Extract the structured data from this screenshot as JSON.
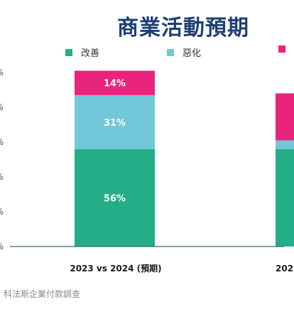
{
  "colors": {
    "improve": "#23ae87",
    "worsen": "#72c7d9",
    "third": "#e8247c",
    "title": "#1d3f73",
    "axis": "#39607d"
  },
  "chart_data": {
    "type": "bar",
    "stacked": true,
    "title": "商業活動預期",
    "categories": [
      "2023 vs 2024 (預期)",
      "202"
    ],
    "ylim": [
      0,
      100
    ],
    "y_tick_labels": [
      "%",
      "%",
      "%",
      "%",
      "%",
      "%"
    ],
    "series": [
      {
        "name": "改善",
        "color": "#23ae87",
        "values": [
          56,
          56
        ],
        "labels": [
          "56%",
          ""
        ]
      },
      {
        "name": "惡化",
        "color": "#72c7d9",
        "values": [
          31,
          5
        ],
        "labels": [
          "31%",
          ""
        ]
      },
      {
        "name": "",
        "color": "#e8247c",
        "values": [
          14,
          27
        ],
        "labels": [
          "14%",
          ""
        ]
      }
    ],
    "legend_position": "top",
    "grid": false
  },
  "source": "科法斯企業付款調查"
}
